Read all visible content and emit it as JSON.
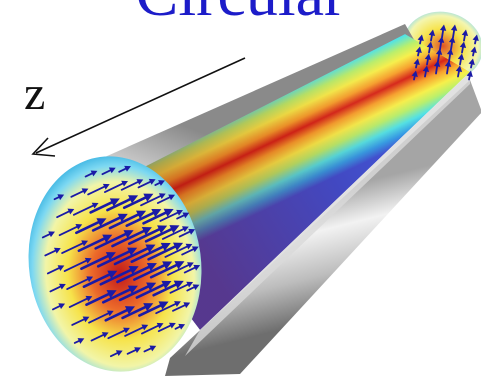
{
  "title": "Circular",
  "axis_label": "z",
  "colors": {
    "title": "#1c1cc9",
    "arrows": "#1a1aa6",
    "field_high": "#c41a1a",
    "field_mid": "#f5ef5a",
    "field_low": "#6fd4f4",
    "wall": "#9a9a9a"
  }
}
